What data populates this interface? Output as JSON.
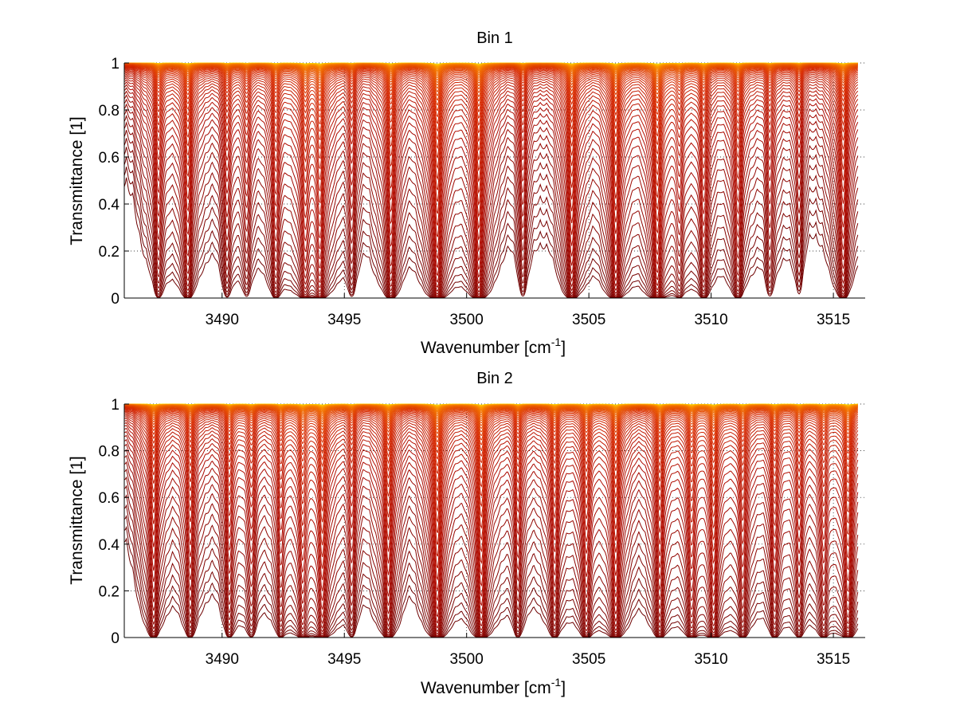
{
  "chart_data": [
    {
      "type": "line",
      "title": "Bin 1",
      "xlabel": "Wavenumber [cm",
      "xlabel_sup": "-1",
      "xlabel_end": "]",
      "ylabel": "Transmittance [1]",
      "xlim": [
        3486,
        3516.3
      ],
      "ylim": [
        0,
        1
      ],
      "xticks": [
        3490,
        3495,
        3500,
        3505,
        3510,
        3515
      ],
      "xtick_labels": [
        "3490",
        "3495",
        "3500",
        "3505",
        "3510",
        "3515"
      ],
      "yticks": [
        0,
        0.2,
        0.4,
        0.6,
        0.8,
        1
      ],
      "ytick_labels": [
        "0",
        "0.2",
        "0.4",
        "0.6",
        "0.8",
        "1"
      ],
      "grid": true,
      "grid_style": "dotted",
      "x_range_data": [
        3486,
        3516
      ],
      "line_count": 60,
      "colormap": "hot (dark red for lowest transmittance to yellow near 1)",
      "absorption_lines": [
        {
          "x": 3487.4,
          "strength": 0.7
        },
        {
          "x": 3488.6,
          "strength": 1.0
        },
        {
          "x": 3490.2,
          "strength": 0.55
        },
        {
          "x": 3491.0,
          "strength": 0.45
        },
        {
          "x": 3492.2,
          "strength": 0.8
        },
        {
          "x": 3493.4,
          "strength": 1.1
        },
        {
          "x": 3494.0,
          "strength": 1.3
        },
        {
          "x": 3495.3,
          "strength": 0.5
        },
        {
          "x": 3496.9,
          "strength": 1.2
        },
        {
          "x": 3498.8,
          "strength": 1.9
        },
        {
          "x": 3500.5,
          "strength": 1.7
        },
        {
          "x": 3502.3,
          "strength": 0.5
        },
        {
          "x": 3504.3,
          "strength": 1.4
        },
        {
          "x": 3506.1,
          "strength": 1.6
        },
        {
          "x": 3507.8,
          "strength": 1.8
        },
        {
          "x": 3508.7,
          "strength": 0.6
        },
        {
          "x": 3509.7,
          "strength": 0.9
        },
        {
          "x": 3511.1,
          "strength": 0.9
        },
        {
          "x": 3512.4,
          "strength": 0.5
        },
        {
          "x": 3513.6,
          "strength": 0.4
        },
        {
          "x": 3515.4,
          "strength": 1.1
        }
      ]
    },
    {
      "type": "line",
      "title": "Bin 2",
      "xlabel": "Wavenumber [cm",
      "xlabel_sup": "-1",
      "xlabel_end": "]",
      "ylabel": "Transmittance [1]",
      "xlim": [
        3486,
        3516.3
      ],
      "ylim": [
        0,
        1
      ],
      "xticks": [
        3490,
        3495,
        3500,
        3505,
        3510,
        3515
      ],
      "xtick_labels": [
        "3490",
        "3495",
        "3500",
        "3505",
        "3510",
        "3515"
      ],
      "yticks": [
        0,
        0.2,
        0.4,
        0.6,
        0.8,
        1
      ],
      "ytick_labels": [
        "0",
        "0.2",
        "0.4",
        "0.6",
        "0.8",
        "1"
      ],
      "grid": true,
      "grid_style": "dotted",
      "x_range_data": [
        3486,
        3516
      ],
      "line_count": 60,
      "colormap": "hot (dark red for lowest transmittance to yellow near 1)",
      "absorption_lines": [
        {
          "x": 3487.2,
          "strength": 1.0
        },
        {
          "x": 3488.7,
          "strength": 0.8
        },
        {
          "x": 3490.3,
          "strength": 0.7
        },
        {
          "x": 3491.2,
          "strength": 0.6
        },
        {
          "x": 3492.4,
          "strength": 0.7
        },
        {
          "x": 3493.3,
          "strength": 1.0
        },
        {
          "x": 3494.1,
          "strength": 1.4
        },
        {
          "x": 3495.3,
          "strength": 0.6
        },
        {
          "x": 3496.8,
          "strength": 1.2
        },
        {
          "x": 3498.8,
          "strength": 1.7
        },
        {
          "x": 3500.6,
          "strength": 1.6
        },
        {
          "x": 3502.1,
          "strength": 0.7
        },
        {
          "x": 3503.6,
          "strength": 0.9
        },
        {
          "x": 3504.9,
          "strength": 1.0
        },
        {
          "x": 3506.1,
          "strength": 1.4
        },
        {
          "x": 3507.9,
          "strength": 1.1
        },
        {
          "x": 3509.2,
          "strength": 1.0
        },
        {
          "x": 3510.1,
          "strength": 1.3
        },
        {
          "x": 3511.3,
          "strength": 0.9
        },
        {
          "x": 3512.6,
          "strength": 0.8
        },
        {
          "x": 3513.6,
          "strength": 0.7
        },
        {
          "x": 3514.6,
          "strength": 0.8
        },
        {
          "x": 3515.6,
          "strength": 1.3
        }
      ]
    }
  ]
}
